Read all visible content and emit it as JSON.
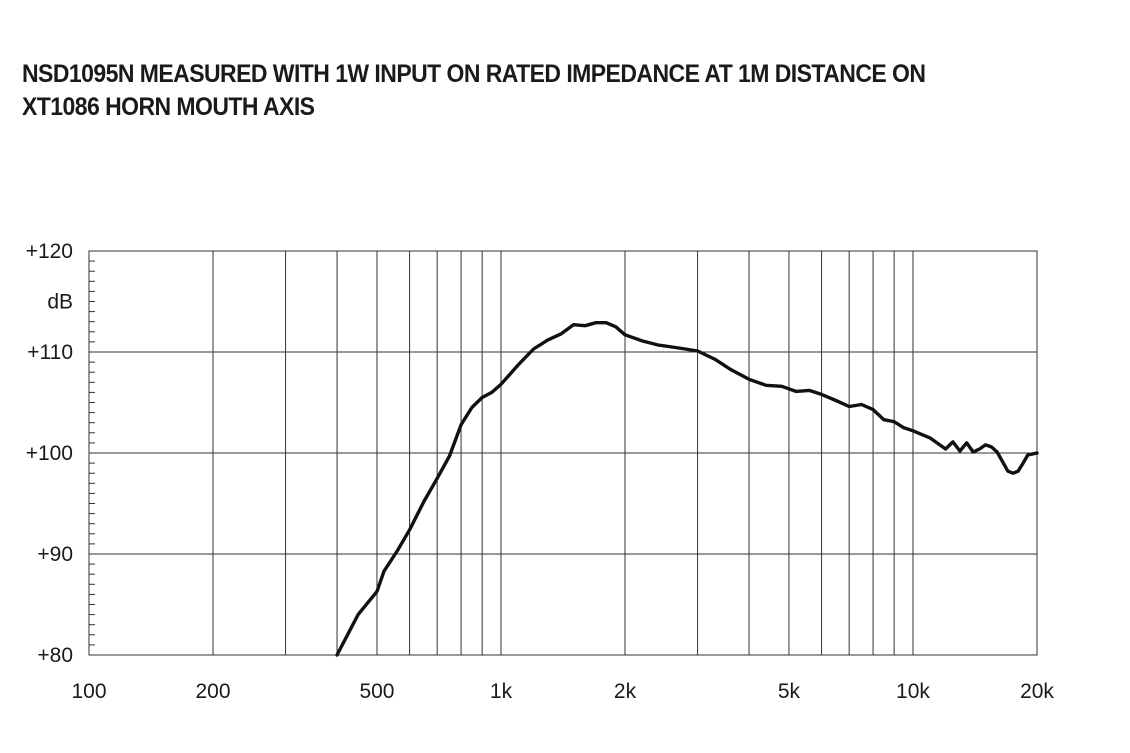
{
  "chart_data": {
    "type": "line",
    "title_lines": [
      "NSD1095N MEASURED WITH 1W INPUT ON RATED IMPEDANCE AT 1M DISTANCE ON",
      "XT1086 HORN MOUTH AXIS"
    ],
    "xlabel": "",
    "ylabel": "dB",
    "x_scale": "log",
    "xlim": [
      100,
      20000
    ],
    "ylim": [
      80,
      120
    ],
    "grid": true,
    "x_gridlines": [
      200,
      300,
      400,
      500,
      600,
      700,
      800,
      900,
      1000,
      2000,
      3000,
      4000,
      5000,
      6000,
      7000,
      8000,
      9000,
      10000
    ],
    "y_gridlines": [
      90,
      100,
      110
    ],
    "x_tick_labels": [
      {
        "value": 100,
        "label": "100"
      },
      {
        "value": 200,
        "label": "200"
      },
      {
        "value": 500,
        "label": "500"
      },
      {
        "value": 1000,
        "label": "1k"
      },
      {
        "value": 2000,
        "label": "2k"
      },
      {
        "value": 5000,
        "label": "5k"
      },
      {
        "value": 10000,
        "label": "10k"
      },
      {
        "value": 20000,
        "label": "20k"
      }
    ],
    "y_tick_labels": [
      {
        "value": 120,
        "label": "+120"
      },
      {
        "value": 110,
        "label": "+110"
      },
      {
        "value": 100,
        "label": "+100"
      },
      {
        "value": 90,
        "label": "+90"
      },
      {
        "value": 80,
        "label": "+80"
      }
    ],
    "series": [
      {
        "x": [
          400,
          450,
          500,
          520,
          560,
          600,
          650,
          700,
          750,
          800,
          850,
          900,
          950,
          1000,
          1100,
          1200,
          1300,
          1400,
          1500,
          1600,
          1700,
          1800,
          1900,
          2000,
          2200,
          2400,
          2600,
          2800,
          3000,
          3300,
          3600,
          4000,
          4400,
          4800,
          5200,
          5600,
          6000,
          6500,
          7000,
          7500,
          8000,
          8500,
          9000,
          9500,
          10000,
          11000,
          12000,
          12500,
          13000,
          13500,
          14000,
          14500,
          15000,
          15500,
          16000,
          17000,
          17500,
          18000,
          18500,
          19000,
          20000
        ],
        "y": [
          80,
          84,
          86.3,
          88.3,
          90.3,
          92.4,
          95.2,
          97.5,
          99.7,
          102.8,
          104.5,
          105.5,
          106,
          106.8,
          108.7,
          110.3,
          111.2,
          111.8,
          112.7,
          112.6,
          112.9,
          112.9,
          112.5,
          111.7,
          111.1,
          110.7,
          110.5,
          110.3,
          110.1,
          109.3,
          108.3,
          107.3,
          106.7,
          106.6,
          106.1,
          106.2,
          105.8,
          105.2,
          104.6,
          104.8,
          104.3,
          103.3,
          103.1,
          102.5,
          102.2,
          101.5,
          100.4,
          101.1,
          100.2,
          101.0,
          100.1,
          100.4,
          100.8,
          100.6,
          100.1,
          98.2,
          98.0,
          98.2,
          99.0,
          99.8,
          100.0
        ]
      }
    ]
  }
}
